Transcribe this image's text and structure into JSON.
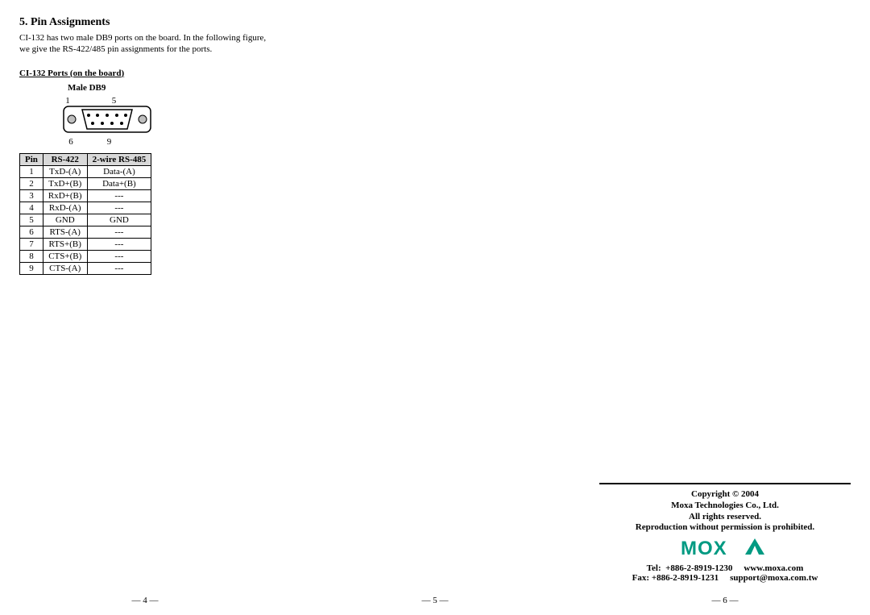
{
  "section": {
    "title": "5. Pin Assignments",
    "intro_line1": "CI-132 has two male DB9 ports on the board. In the following figure,",
    "intro_line2": "we give the RS-422/485 pin assignments for the ports.",
    "ports_heading": "CI-132 Ports (on the board)",
    "male_db9_label": "Male DB9",
    "top_pin_left": "1",
    "top_pin_right": "5",
    "bottom_pin_left": "6",
    "bottom_pin_right": "9"
  },
  "table": {
    "columns": [
      "Pin",
      "RS-422",
      "2-wire RS-485"
    ],
    "header_bg": "#d9d9d9",
    "border_color": "#000000",
    "rows": [
      [
        "1",
        "TxD-(A)",
        "Data-(A)"
      ],
      [
        "2",
        "TxD+(B)",
        "Data+(B)"
      ],
      [
        "3",
        "RxD+(B)",
        "---"
      ],
      [
        "4",
        "RxD-(A)",
        "---"
      ],
      [
        "5",
        "GND",
        "GND"
      ],
      [
        "6",
        "RTS-(A)",
        "---"
      ],
      [
        "7",
        "RTS+(B)",
        "---"
      ],
      [
        "8",
        "CTS+(B)",
        "---"
      ],
      [
        "9",
        "CTS-(A)",
        "---"
      ]
    ]
  },
  "db9": {
    "shell_stroke": "#000000",
    "shell_fill": "#ffffff",
    "pin_fill": "#000000",
    "mount_fill": "#bfbfbf"
  },
  "copyright": {
    "line1": "Copyright © 2004",
    "line2": "Moxa Technologies Co., Ltd.",
    "line3": "All rights reserved.",
    "line4": "Reproduction without permission is prohibited.",
    "tel_label": "Tel:",
    "tel": "+886-2-8919-1230",
    "web": "www.moxa.com",
    "fax_label": "Fax:",
    "fax": "+886-2-8919-1231",
    "email": "support@moxa.com.tw"
  },
  "logo": {
    "text": "MOXA",
    "color": "#009a82"
  },
  "pages": {
    "p4": "— 4 —",
    "p5": "— 5 —",
    "p6": "— 6 —"
  }
}
